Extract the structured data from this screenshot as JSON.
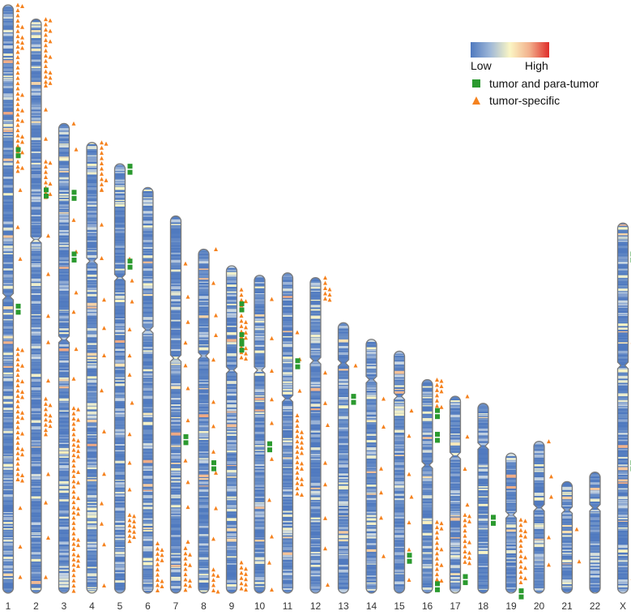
{
  "chart_data": {
    "type": "ideogram",
    "title": "",
    "chromosomes": [
      {
        "name": "1",
        "length": 248,
        "centromere": 123,
        "squares": [
          60,
          126
        ],
        "tri_dense": [
          [
            0,
            70
          ],
          [
            145,
            200
          ]
        ],
        "tri_sparse": [
          [
            70,
            123
          ],
          [
            200,
            248
          ]
        ]
      },
      {
        "name": "2",
        "length": 242,
        "centromere": 93,
        "squares": [
          71
        ],
        "tri_dense": [
          [
            0,
            28
          ],
          [
            60,
            75
          ],
          [
            160,
            175
          ]
        ],
        "tri_sparse": [
          [
            28,
            60
          ],
          [
            75,
            160
          ],
          [
            175,
            242
          ]
        ]
      },
      {
        "name": "3",
        "length": 198,
        "centromere": 91,
        "squares": [
          28,
          54
        ],
        "tri_dense": [
          [
            120,
            198
          ]
        ],
        "tri_sparse": [
          [
            0,
            120
          ]
        ]
      },
      {
        "name": "4",
        "length": 190,
        "centromere": 50,
        "squares": [],
        "tri_dense": [
          [
            0,
            20
          ]
        ],
        "tri_sparse": [
          [
            20,
            190
          ]
        ]
      },
      {
        "name": "5",
        "length": 181,
        "centromere": 48,
        "squares": [
          0,
          40
        ],
        "tri_dense": [
          [
            148,
            160
          ]
        ],
        "tri_sparse": [
          [
            40,
            148
          ]
        ]
      },
      {
        "name": "6",
        "length": 171,
        "centromere": 60,
        "squares": [],
        "tri_dense": [
          [
            150,
            171
          ]
        ],
        "tri_sparse": []
      },
      {
        "name": "7",
        "length": 159,
        "centromere": 60,
        "squares": [
          92
        ],
        "tri_dense": [
          [
            140,
            159
          ]
        ],
        "tri_sparse": [
          [
            20,
            140
          ]
        ]
      },
      {
        "name": "8",
        "length": 145,
        "centromere": 45,
        "squares": [
          89
        ],
        "tri_dense": [
          [
            135,
            145
          ]
        ],
        "tri_sparse": [
          [
            0,
            135
          ]
        ]
      },
      {
        "name": "9",
        "length": 138,
        "centromere": 44,
        "squares": [
          15,
          28,
          32
        ],
        "tri_dense": [
          [
            10,
            40
          ],
          [
            125,
            138
          ]
        ],
        "tri_sparse": []
      },
      {
        "name": "10",
        "length": 134,
        "centromere": 40,
        "squares": [
          70
        ],
        "tri_dense": [],
        "tri_sparse": [
          [
            10,
            134
          ]
        ]
      },
      {
        "name": "11",
        "length": 135,
        "centromere": 53,
        "squares": [
          36
        ],
        "tri_dense": [
          [
            60,
            95
          ]
        ],
        "tri_sparse": [
          [
            25,
            60
          ]
        ]
      },
      {
        "name": "12",
        "length": 133,
        "centromere": 35,
        "squares": [],
        "tri_dense": [
          [
            0,
            10
          ]
        ],
        "tri_sparse": [
          [
            40,
            133
          ]
        ]
      },
      {
        "name": "13",
        "length": 114,
        "centromere": 17,
        "squares": [
          30
        ],
        "tri_dense": [],
        "tri_sparse": [
          [
            18,
            30
          ]
        ]
      },
      {
        "name": "14",
        "length": 107,
        "centromere": 17,
        "squares": [],
        "tri_dense": [],
        "tri_sparse": [
          [
            25,
            107
          ]
        ]
      },
      {
        "name": "15",
        "length": 102,
        "centromere": 19,
        "squares": [
          85
        ],
        "tri_dense": [],
        "tri_sparse": [
          [
            25,
            102
          ]
        ]
      },
      {
        "name": "16",
        "length": 90,
        "centromere": 36,
        "squares": [
          12,
          22,
          85
        ],
        "tri_dense": [
          [
            0,
            12
          ],
          [
            60,
            85
          ]
        ],
        "tri_sparse": []
      },
      {
        "name": "17",
        "length": 83,
        "centromere": 25,
        "squares": [
          75
        ],
        "tri_dense": [
          [
            50,
            70
          ]
        ],
        "tri_sparse": [
          [
            0,
            50
          ]
        ]
      },
      {
        "name": "18",
        "length": 80,
        "centromere": 18,
        "squares": [
          47
        ],
        "tri_dense": [],
        "tri_sparse": []
      },
      {
        "name": "19",
        "length": 59,
        "centromere": 26,
        "squares": [
          57
        ],
        "tri_dense": [
          [
            28,
            55
          ]
        ],
        "tri_sparse": []
      },
      {
        "name": "20",
        "length": 64,
        "centromere": 28,
        "squares": [],
        "tri_dense": [],
        "tri_sparse": [
          [
            0,
            64
          ]
        ]
      },
      {
        "name": "21",
        "length": 47,
        "centromere": 12,
        "squares": [],
        "tri_dense": [],
        "tri_sparse": [
          [
            20,
            47
          ]
        ]
      },
      {
        "name": "22",
        "length": 51,
        "centromere": 15,
        "squares": [],
        "tri_dense": [],
        "tri_sparse": []
      },
      {
        "name": "X",
        "length": 156,
        "centromere": 60,
        "squares": [
          12,
          100
        ],
        "tri_dense": [],
        "tri_sparse": [
          [
            50,
            156
          ]
        ]
      }
    ],
    "legend": {
      "gradient_low": "Low",
      "gradient_high": "High",
      "square_label": "tumor and para-tumor",
      "triangle_label": "tumor-specific"
    },
    "colors": {
      "low": "#4f79bf",
      "mid": "#fbf6c4",
      "high": "#df2d2a",
      "square": "#2b9a2f",
      "triangle": "#f5821f",
      "outline": "#7a7a7a"
    }
  }
}
